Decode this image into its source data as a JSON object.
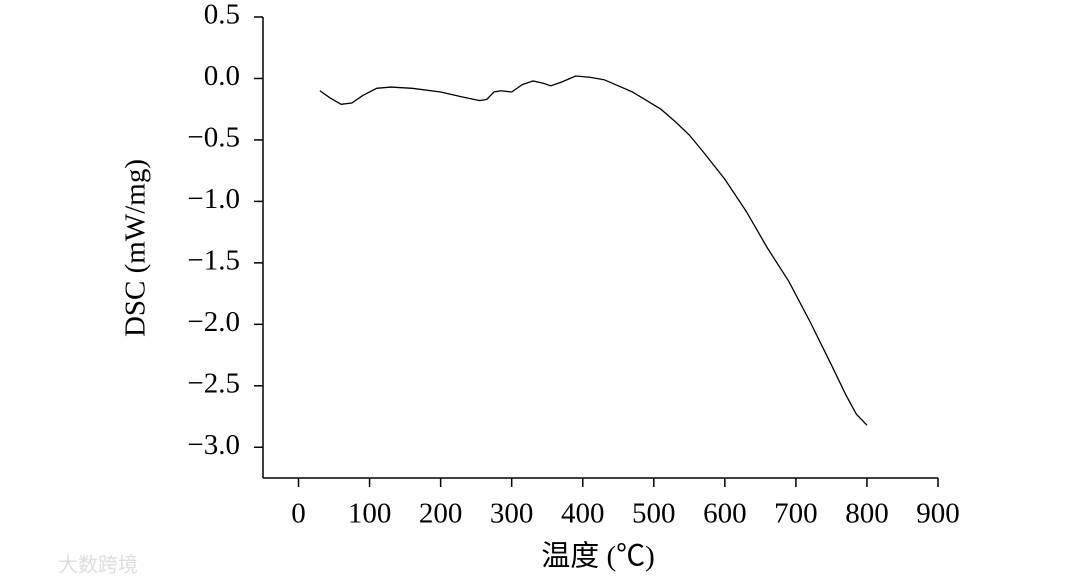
{
  "chart_data": {
    "type": "line",
    "x_label": "温度 (℃)",
    "y_label": "DSC (mW/mg)",
    "watermark": "大数跨境",
    "x": [
      30,
      45,
      60,
      75,
      90,
      110,
      130,
      160,
      200,
      230,
      255,
      265,
      275,
      285,
      300,
      315,
      330,
      345,
      355,
      370,
      390,
      410,
      430,
      450,
      470,
      490,
      510,
      530,
      550,
      570,
      600,
      630,
      660,
      690,
      720,
      750,
      770,
      785,
      800
    ],
    "series": [
      {
        "name": "DSC",
        "color": "#000000",
        "values": [
          -0.1,
          -0.16,
          -0.21,
          -0.2,
          -0.14,
          -0.08,
          -0.07,
          -0.08,
          -0.11,
          -0.15,
          -0.18,
          -0.17,
          -0.11,
          -0.1,
          -0.11,
          -0.05,
          -0.02,
          -0.04,
          -0.06,
          -0.03,
          0.02,
          0.01,
          -0.01,
          -0.06,
          -0.11,
          -0.18,
          -0.25,
          -0.35,
          -0.46,
          -0.6,
          -0.82,
          -1.08,
          -1.38,
          -1.65,
          -1.98,
          -2.33,
          -2.57,
          -2.73,
          -2.82
        ]
      }
    ],
    "xlim": [
      -50,
      900
    ],
    "xticks": [
      0,
      100,
      200,
      300,
      400,
      500,
      600,
      700,
      800,
      900
    ],
    "ylim": [
      -3.25,
      0.5
    ],
    "yticks": [
      0.5,
      {
        "value": 0,
        "label": "0.0"
      },
      {
        "value": -0.5,
        "label": "−0.5"
      },
      {
        "value": -1,
        "label": "−1.0"
      },
      {
        "value": -1.5,
        "label": "−1.5"
      },
      {
        "value": -2,
        "label": "−2.0"
      },
      {
        "value": -2.5,
        "label": "−2.5"
      },
      {
        "value": -3,
        "label": "−3.0"
      }
    ],
    "grid": false
  }
}
